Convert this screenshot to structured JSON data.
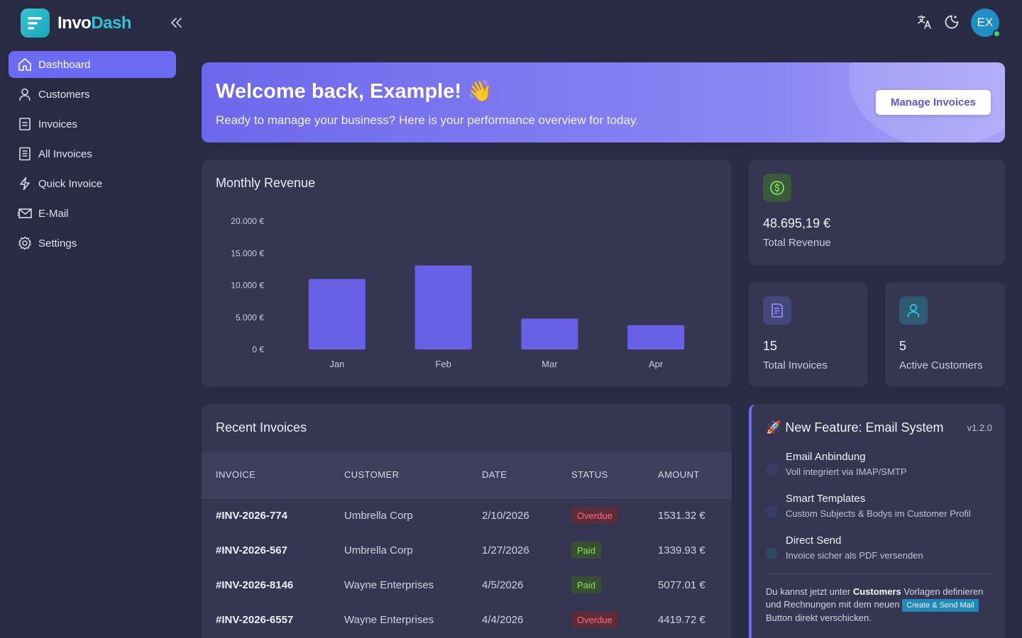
{
  "brand": {
    "name_part1": "Invo",
    "name_part2": "Dash"
  },
  "sidebar": {
    "items": [
      {
        "label": "Dashboard",
        "icon": "home-icon",
        "active": true
      },
      {
        "label": "Customers",
        "icon": "user-icon"
      },
      {
        "label": "Invoices",
        "icon": "invoice-icon"
      },
      {
        "label": "All Invoices",
        "icon": "list-document-icon"
      },
      {
        "label": "Quick Invoice",
        "icon": "lightning-icon"
      },
      {
        "label": "E-Mail",
        "icon": "mail-icon"
      },
      {
        "label": "Settings",
        "icon": "gear-icon"
      }
    ]
  },
  "header": {
    "avatar_initials": "EX",
    "status": "online"
  },
  "banner": {
    "title": "Welcome back, Example! 👋",
    "subtitle": "Ready to manage your business? Here is your performance overview for today.",
    "button_label": "Manage Invoices"
  },
  "chart": {
    "title": "Monthly Revenue",
    "y_ticks": [
      "20.000 €",
      "15.000 €",
      "10.000 €",
      "5.000 €",
      "0 €"
    ],
    "bar_color": "#6861e6"
  },
  "chart_data": {
    "type": "bar",
    "title": "Monthly Revenue",
    "categories": [
      "Jan",
      "Feb",
      "Mar",
      "Apr"
    ],
    "values": [
      11000,
      13100,
      4800,
      3800
    ],
    "ylim": [
      0,
      20000
    ],
    "y_tick_values": [
      0,
      5000,
      10000,
      15000,
      20000
    ],
    "xlabel": "",
    "ylabel": "",
    "grid": false,
    "legend": "none"
  },
  "stats": {
    "revenue": {
      "value": "48.695,19 €",
      "label": "Total Revenue",
      "icon": "dollar-circle-icon",
      "color": "#7ee05a"
    },
    "invoices": {
      "value": "15",
      "label": "Total Invoices",
      "icon": "invoice-icon",
      "color": "#8f89ff"
    },
    "customers": {
      "value": "5",
      "label": "Active Customers",
      "icon": "user-icon",
      "color": "#35c3e8"
    }
  },
  "recent_invoices": {
    "title": "Recent Invoices",
    "headers": [
      "INVOICE",
      "CUSTOMER",
      "DATE",
      "STATUS",
      "AMOUNT"
    ],
    "rows": [
      {
        "invoice": "#INV-2026-774",
        "customer": "Umbrella Corp",
        "date": "2/10/2026",
        "status": "Overdue",
        "amount": "1531.32 €"
      },
      {
        "invoice": "#INV-2026-567",
        "customer": "Umbrella Corp",
        "date": "1/27/2026",
        "status": "Paid",
        "amount": "1339.93 €"
      },
      {
        "invoice": "#INV-2026-8146",
        "customer": "Wayne Enterprises",
        "date": "4/5/2026",
        "status": "Paid",
        "amount": "5077.01 €"
      },
      {
        "invoice": "#INV-2026-6557",
        "customer": "Wayne Enterprises",
        "date": "4/4/2026",
        "status": "Overdue",
        "amount": "4419.72 €"
      }
    ]
  },
  "feature": {
    "title": "🚀 New Feature: Email System",
    "version": "v1.2.0",
    "items": [
      {
        "name": "Email Anbindung",
        "desc": "Voll integriert via IMAP/SMTP",
        "dot_color": "#3a3c66"
      },
      {
        "name": "Smart Templates",
        "desc": "Custom Subjects & Bodys im Customer Profil",
        "dot_color": "#3a3c66"
      },
      {
        "name": "Direct Send",
        "desc": "Invoice sicher als PDF versenden",
        "dot_color": "#2e4a5e"
      }
    ],
    "note_part1": "Du kannst jetzt unter ",
    "note_bold": "Customers",
    "note_part2": " Vorlagen definieren und Rechnungen mit dem neuen ",
    "note_tag": "Create & Send Mail",
    "note_part3": " Button direkt verschicken."
  }
}
